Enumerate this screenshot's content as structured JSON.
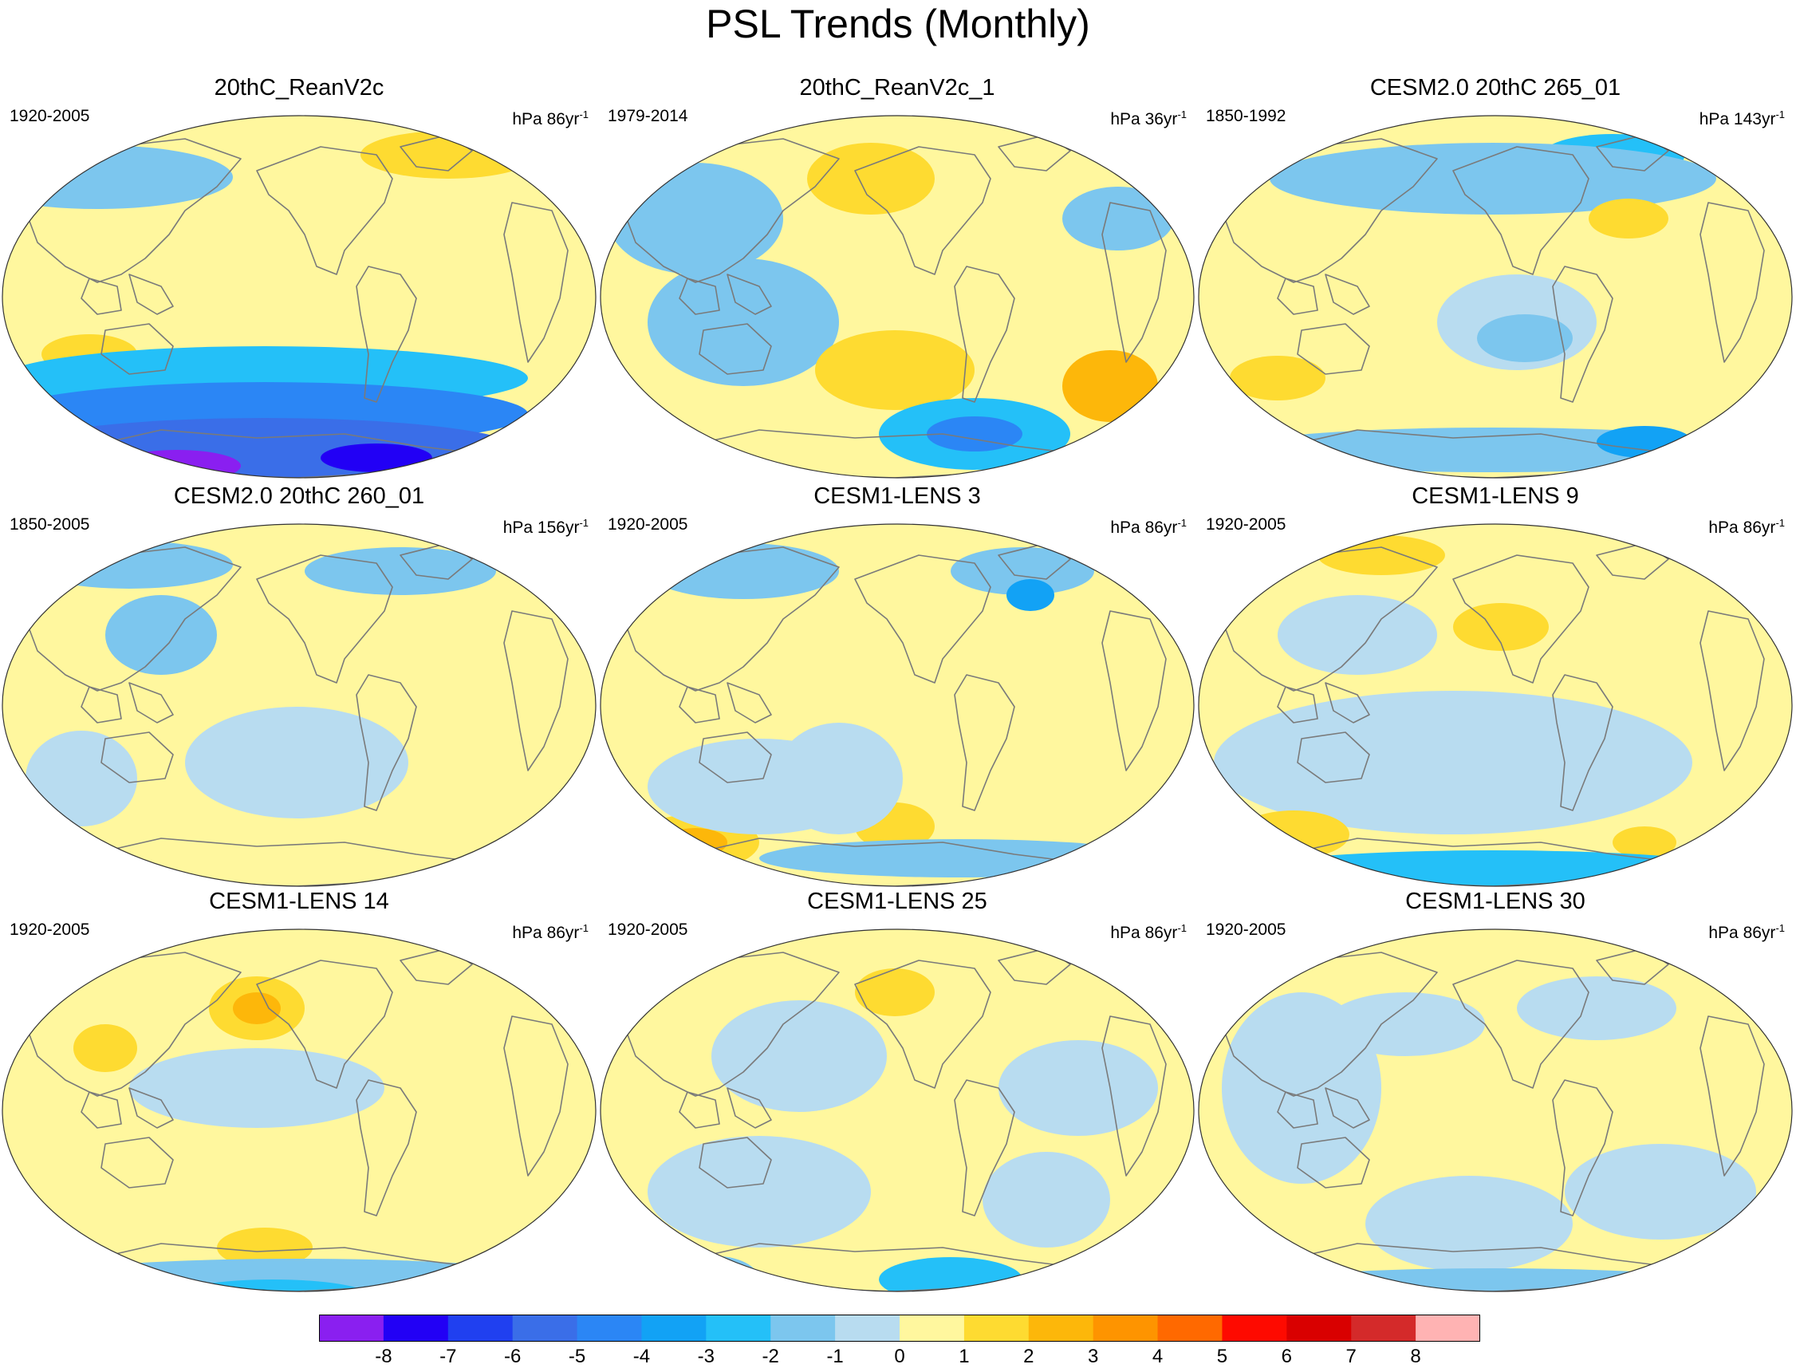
{
  "title": "PSL Trends (Monthly)",
  "colors": {
    "ocean_neutral_pos": "#fff79e",
    "ocean_neutral_neg": "#b8dcf0",
    "coast": "#7a7a7a"
  },
  "panels": [
    {
      "title": "20thC_ReanV2c",
      "period": "1920-2005",
      "units_prefix": "hPa ",
      "units_value": "86yr",
      "units_exp": "-1"
    },
    {
      "title": "20thC_ReanV2c_1",
      "period": "1979-2014",
      "units_prefix": "hPa ",
      "units_value": "36yr",
      "units_exp": "-1"
    },
    {
      "title": "CESM2.0 20thC 265_01",
      "period": "1850-1992",
      "units_prefix": "hPa ",
      "units_value": "143yr",
      "units_exp": "-1"
    },
    {
      "title": "CESM2.0 20thC 260_01",
      "period": "1850-2005",
      "units_prefix": "hPa ",
      "units_value": "156yr",
      "units_exp": "-1"
    },
    {
      "title": "CESM1-LENS 3",
      "period": "1920-2005",
      "units_prefix": "hPa ",
      "units_value": "86yr",
      "units_exp": "-1"
    },
    {
      "title": "CESM1-LENS 9",
      "period": "1920-2005",
      "units_prefix": "hPa ",
      "units_value": "86yr",
      "units_exp": "-1"
    },
    {
      "title": "CESM1-LENS 14",
      "period": "1920-2005",
      "units_prefix": "hPa ",
      "units_value": "86yr",
      "units_exp": "-1"
    },
    {
      "title": "CESM1-LENS 25",
      "period": "1920-2005",
      "units_prefix": "hPa ",
      "units_value": "86yr",
      "units_exp": "-1"
    },
    {
      "title": "CESM1-LENS 30",
      "period": "1920-2005",
      "units_prefix": "hPa ",
      "units_value": "86yr",
      "units_exp": "-1"
    }
  ],
  "colorbar": {
    "colors": [
      "#8a1ff0",
      "#2200f5",
      "#2040f0",
      "#3a6ee8",
      "#2b86f5",
      "#12a2f5",
      "#24c0f8",
      "#7cc6ee",
      "#b8dcf0",
      "#fff79e",
      "#fedb31",
      "#fdb70a",
      "#fe9400",
      "#ff6900",
      "#fe0a00",
      "#d90000",
      "#d42a2a",
      "#ffb3b3"
    ],
    "labels": [
      "-8",
      "-7",
      "-6",
      "-5",
      "-4",
      "-3",
      "-2",
      "-1",
      "0",
      "1",
      "2",
      "3",
      "4",
      "5",
      "6",
      "7",
      "8"
    ]
  }
}
